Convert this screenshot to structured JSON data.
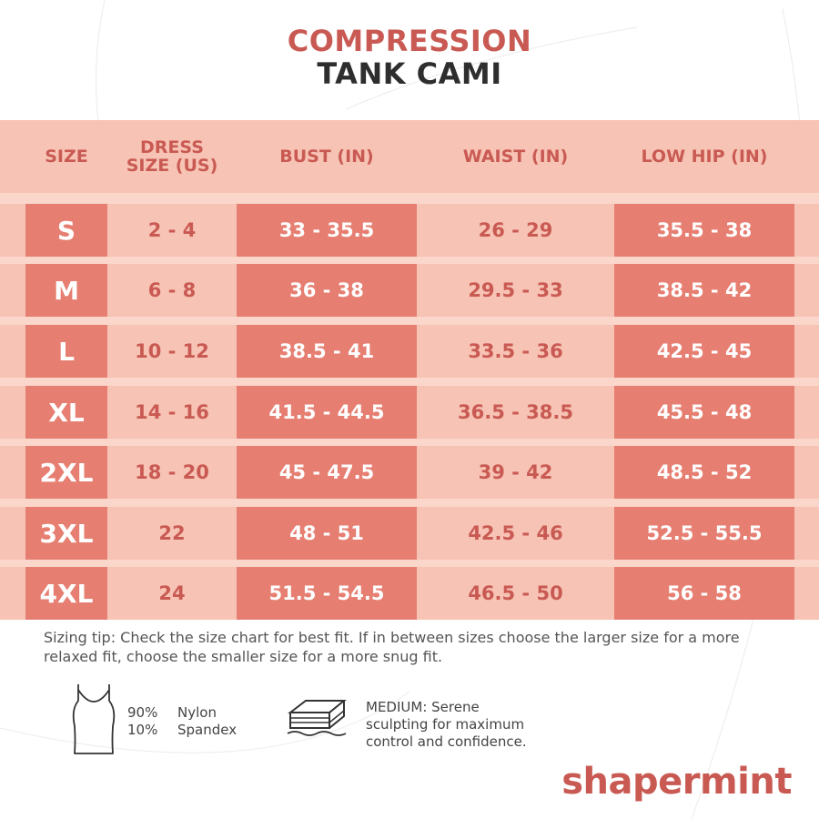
{
  "title": {
    "line1": "COMPRESSION",
    "line2": "TANK CAMI"
  },
  "table": {
    "headers": {
      "size": "SIZE",
      "dress": "DRESS\nSIZE (US)",
      "bust": "BUST (IN)",
      "waist": "WAIST (IN)",
      "hip": "LOW HIP (IN)"
    },
    "rows": [
      {
        "size": "S",
        "dress": "2 - 4",
        "bust": "33 - 35.5",
        "waist": "26 - 29",
        "hip": "35.5 - 38"
      },
      {
        "size": "M",
        "dress": "6 - 8",
        "bust": "36 - 38",
        "waist": "29.5 - 33",
        "hip": "38.5 - 42"
      },
      {
        "size": "L",
        "dress": "10 - 12",
        "bust": "38.5 - 41",
        "waist": "33.5 - 36",
        "hip": "42.5 - 45"
      },
      {
        "size": "XL",
        "dress": "14 - 16",
        "bust": "41.5 - 44.5",
        "waist": "36.5 - 38.5",
        "hip": "45.5 - 48"
      },
      {
        "size": "2XL",
        "dress": "18 - 20",
        "bust": "45 - 47.5",
        "waist": "39 - 42",
        "hip": "48.5 - 52"
      },
      {
        "size": "3XL",
        "dress": "22",
        "bust": "48 - 51",
        "waist": "42.5 - 46",
        "hip": "52.5 - 55.5"
      },
      {
        "size": "4XL",
        "dress": "24",
        "bust": "51.5 - 54.5",
        "waist": "46.5 - 50",
        "hip": "56 - 58"
      }
    ]
  },
  "tip": "Sizing tip: Check the size chart for best fit. If in between sizes choose the larger size for a more relaxed fit, choose the smaller size for a more snug fit.",
  "fabric": {
    "pct1": "90%",
    "mat1": "Nylon",
    "pct2": "10%",
    "mat2": "Spandex",
    "icon": "tank-top-icon"
  },
  "compression": {
    "line1": "MEDIUM: Serene",
    "line2": "sculpting for maximum",
    "line3": "control and confidence.",
    "icon": "layers-icon"
  },
  "brand": "shapermint",
  "colors": {
    "accent": "#c95a53",
    "dark_cell": "#e67f72",
    "header_band": "#f7c3b4",
    "light_band": "#fad6cb"
  }
}
